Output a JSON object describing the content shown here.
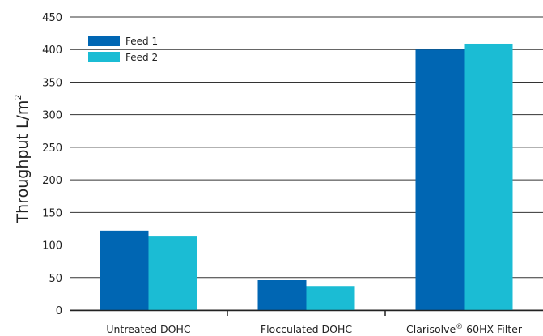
{
  "chart_data": {
    "type": "bar",
    "categories": [
      "Untreated DOHC",
      "Flocculated DOHC",
      "Clarisolve® 60HX Filter"
    ],
    "series": [
      {
        "name": "Feed 1",
        "values": [
          122,
          46,
          400
        ],
        "color": "#0066b3"
      },
      {
        "name": "Feed 2",
        "values": [
          113,
          37,
          409
        ],
        "color": "#1bbcd4"
      }
    ],
    "ylabel": "Throughput L/m²",
    "xlabel": "",
    "title": "",
    "ylim": [
      0,
      450
    ],
    "yticks": [
      0,
      50,
      100,
      150,
      200,
      250,
      300,
      350,
      400,
      450
    ],
    "grid": true,
    "legend_position": "top-left"
  }
}
